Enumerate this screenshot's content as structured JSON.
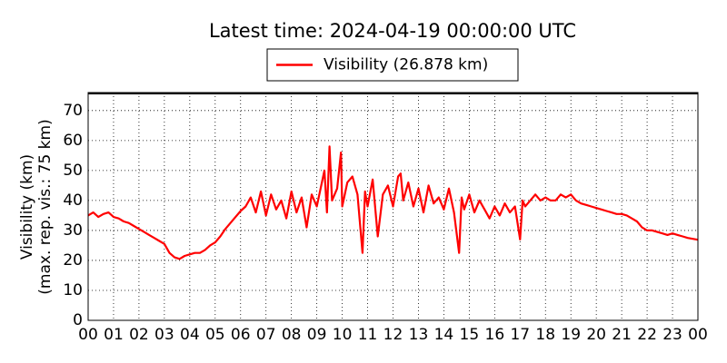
{
  "chart_data": {
    "type": "line",
    "title": "Latest time: 2024-04-19 00:00:00 UTC",
    "ylabel": [
      "Visibility (km)",
      "(max. rep. vis.: 75 km)"
    ],
    "legend": "upper center",
    "grid": true,
    "xlim": [
      0,
      24
    ],
    "ylim": [
      0,
      76
    ],
    "xticks": [
      {
        "value": 0,
        "label": "00"
      },
      {
        "value": 1,
        "label": "01"
      },
      {
        "value": 2,
        "label": "02"
      },
      {
        "value": 3,
        "label": "03"
      },
      {
        "value": 4,
        "label": "04"
      },
      {
        "value": 5,
        "label": "05"
      },
      {
        "value": 6,
        "label": "06"
      },
      {
        "value": 7,
        "label": "07"
      },
      {
        "value": 8,
        "label": "08"
      },
      {
        "value": 9,
        "label": "09"
      },
      {
        "value": 10,
        "label": "10"
      },
      {
        "value": 11,
        "label": "11"
      },
      {
        "value": 12,
        "label": "12"
      },
      {
        "value": 13,
        "label": "13"
      },
      {
        "value": 14,
        "label": "14"
      },
      {
        "value": 15,
        "label": "15"
      },
      {
        "value": 16,
        "label": "16"
      },
      {
        "value": 17,
        "label": "17"
      },
      {
        "value": 18,
        "label": "18"
      },
      {
        "value": 19,
        "label": "19"
      },
      {
        "value": 20,
        "label": "20"
      },
      {
        "value": 21,
        "label": "21"
      },
      {
        "value": 22,
        "label": "22"
      },
      {
        "value": 23,
        "label": "23"
      },
      {
        "value": 24,
        "label": "00"
      }
    ],
    "yticks": [
      0,
      10,
      20,
      30,
      40,
      50,
      60,
      70
    ],
    "x": [
      0.0,
      0.2,
      0.4,
      0.6,
      0.8,
      1.0,
      1.2,
      1.4,
      1.6,
      1.8,
      2.0,
      2.2,
      2.4,
      2.6,
      2.8,
      3.0,
      3.2,
      3.4,
      3.6,
      3.8,
      4.0,
      4.2,
      4.4,
      4.6,
      4.8,
      5.0,
      5.2,
      5.4,
      5.6,
      5.8,
      6.0,
      6.2,
      6.4,
      6.6,
      6.8,
      7.0,
      7.2,
      7.4,
      7.6,
      7.8,
      8.0,
      8.2,
      8.4,
      8.6,
      8.8,
      9.0,
      9.2,
      9.3,
      9.4,
      9.5,
      9.6,
      9.8,
      9.95,
      10.0,
      10.2,
      10.4,
      10.6,
      10.8,
      10.9,
      11.0,
      11.2,
      11.4,
      11.6,
      11.8,
      12.0,
      12.2,
      12.3,
      12.4,
      12.6,
      12.8,
      13.0,
      13.2,
      13.4,
      13.6,
      13.8,
      14.0,
      14.2,
      14.4,
      14.6,
      14.7,
      14.8,
      15.0,
      15.2,
      15.4,
      15.6,
      15.8,
      16.0,
      16.2,
      16.4,
      16.6,
      16.8,
      17.0,
      17.1,
      17.2,
      17.4,
      17.6,
      17.8,
      18.0,
      18.2,
      18.4,
      18.6,
      18.8,
      19.0,
      19.2,
      19.4,
      19.6,
      19.8,
      20.0,
      20.2,
      20.4,
      20.6,
      20.8,
      21.0,
      21.2,
      21.4,
      21.6,
      21.8,
      22.0,
      22.2,
      22.4,
      22.6,
      22.8,
      23.0,
      23.2,
      23.4,
      23.6,
      23.8,
      24.0
    ],
    "series": [
      {
        "name": "Visibility (26.878 km)",
        "color": "#ff0000",
        "values": [
          35,
          36,
          34.5,
          35.5,
          36,
          34.5,
          34,
          33,
          32.5,
          31.5,
          30.5,
          29.5,
          28.5,
          27.5,
          26.5,
          25.5,
          22.5,
          21,
          20.5,
          21.5,
          22,
          22.5,
          22.5,
          23.5,
          25,
          26,
          28,
          30.5,
          32.5,
          34.5,
          36.5,
          38,
          41,
          36,
          43,
          35,
          42,
          37,
          40,
          34,
          43,
          36,
          41,
          31,
          42,
          38,
          46,
          50,
          36,
          58,
          40,
          44,
          56,
          38,
          46,
          48,
          42,
          22.5,
          43,
          38,
          47,
          28,
          42,
          45,
          38,
          48,
          49,
          40,
          46,
          38,
          44,
          36,
          45,
          39,
          41,
          37,
          44,
          36,
          22.5,
          41,
          37,
          42,
          36,
          40,
          37,
          34,
          38,
          35,
          39,
          36,
          38,
          27,
          40,
          38,
          40,
          42,
          40,
          41,
          40,
          40,
          42,
          41,
          42,
          40,
          39,
          38.5,
          38,
          37.5,
          37,
          36.5,
          36,
          35.5,
          35.5,
          35,
          34,
          33,
          31,
          30,
          30,
          29.5,
          29,
          28.5,
          29,
          28.5,
          28,
          27.5,
          27.2,
          26.9
        ]
      }
    ]
  }
}
